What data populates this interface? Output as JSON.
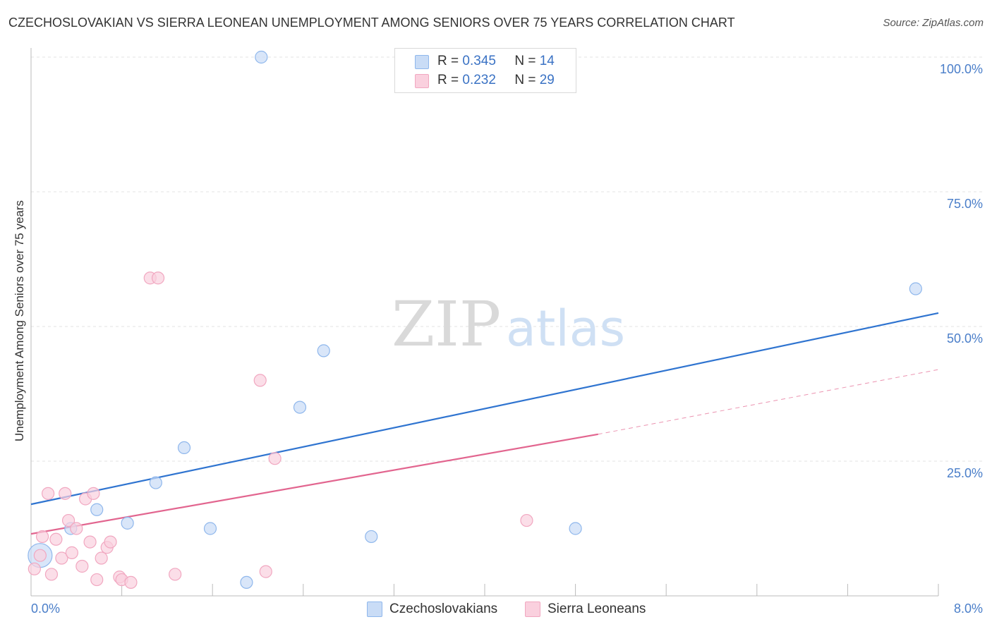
{
  "title": "CZECHOSLOVAKIAN VS SIERRA LEONEAN UNEMPLOYMENT AMONG SENIORS OVER 75 YEARS CORRELATION CHART",
  "source": "Source: ZipAtlas.com",
  "watermark": {
    "zip": "ZIP",
    "atlas": "atlas"
  },
  "legend": {
    "r_label": "R =",
    "n_label": "N =",
    "rows": [
      {
        "r": "0.345",
        "n": "14"
      },
      {
        "r": "0.232",
        "n": "29"
      }
    ]
  },
  "chart_data": {
    "type": "scatter",
    "title": "CZECHOSLOVAKIAN VS SIERRA LEONEAN UNEMPLOYMENT AMONG SENIORS OVER 75 YEARS CORRELATION CHART",
    "xlabel": "",
    "ylabel": "Unemployment Among Seniors over 75 years",
    "xlim": [
      0,
      8
    ],
    "ylim": [
      0,
      100
    ],
    "x_tick_labels": [
      "0.0%",
      "8.0%"
    ],
    "y_ticks": [
      25,
      50,
      75,
      100
    ],
    "y_tick_labels": [
      "25.0%",
      "50.0%",
      "75.0%",
      "100.0%"
    ],
    "grid": true,
    "series": [
      {
        "name": "Czechoslovakians",
        "color": "#8fb7ec",
        "fill": "#c9dcf6",
        "line_color": "#2f74d0",
        "points": [
          {
            "x": 0.08,
            "y": 7.5,
            "size": "large"
          },
          {
            "x": 0.35,
            "y": 12.5
          },
          {
            "x": 0.58,
            "y": 16.0
          },
          {
            "x": 0.85,
            "y": 13.5
          },
          {
            "x": 1.1,
            "y": 21.0
          },
          {
            "x": 1.35,
            "y": 27.5
          },
          {
            "x": 1.58,
            "y": 12.5
          },
          {
            "x": 1.9,
            "y": 2.5
          },
          {
            "x": 2.03,
            "y": 100.0
          },
          {
            "x": 2.37,
            "y": 35.0
          },
          {
            "x": 2.58,
            "y": 45.5
          },
          {
            "x": 3.0,
            "y": 11.0
          },
          {
            "x": 4.8,
            "y": 12.5
          },
          {
            "x": 7.8,
            "y": 57.0
          }
        ],
        "trend": {
          "x0": 0.0,
          "y0": 17.0,
          "x1": 8.0,
          "y1": 52.5
        }
      },
      {
        "name": "Sierra Leoneans",
        "color": "#f1a7c0",
        "fill": "#fad0de",
        "line_color": "#e2658f",
        "points": [
          {
            "x": 0.03,
            "y": 5.0
          },
          {
            "x": 0.08,
            "y": 7.5
          },
          {
            "x": 0.1,
            "y": 11.0
          },
          {
            "x": 0.15,
            "y": 19.0
          },
          {
            "x": 0.18,
            "y": 4.0
          },
          {
            "x": 0.22,
            "y": 10.5
          },
          {
            "x": 0.27,
            "y": 7.0
          },
          {
            "x": 0.3,
            "y": 19.0
          },
          {
            "x": 0.33,
            "y": 14.0
          },
          {
            "x": 0.36,
            "y": 8.0
          },
          {
            "x": 0.4,
            "y": 12.5
          },
          {
            "x": 0.45,
            "y": 5.5
          },
          {
            "x": 0.48,
            "y": 18.0
          },
          {
            "x": 0.52,
            "y": 10.0
          },
          {
            "x": 0.55,
            "y": 19.0
          },
          {
            "x": 0.58,
            "y": 3.0
          },
          {
            "x": 0.62,
            "y": 7.0
          },
          {
            "x": 0.67,
            "y": 9.0
          },
          {
            "x": 0.7,
            "y": 10.0
          },
          {
            "x": 0.78,
            "y": 3.5
          },
          {
            "x": 0.8,
            "y": 3.0
          },
          {
            "x": 0.88,
            "y": 2.5
          },
          {
            "x": 1.05,
            "y": 59.0
          },
          {
            "x": 1.12,
            "y": 59.0
          },
          {
            "x": 1.27,
            "y": 4.0
          },
          {
            "x": 2.02,
            "y": 40.0
          },
          {
            "x": 2.07,
            "y": 4.5
          },
          {
            "x": 2.15,
            "y": 25.5
          },
          {
            "x": 4.37,
            "y": 14.0
          }
        ],
        "trend": {
          "x0": 0.0,
          "y0": 11.5,
          "x1": 5.0,
          "y1": 30.0
        },
        "trend_extension": {
          "x0": 5.0,
          "y0": 30.0,
          "x1": 8.0,
          "y1": 42.0
        }
      }
    ]
  }
}
